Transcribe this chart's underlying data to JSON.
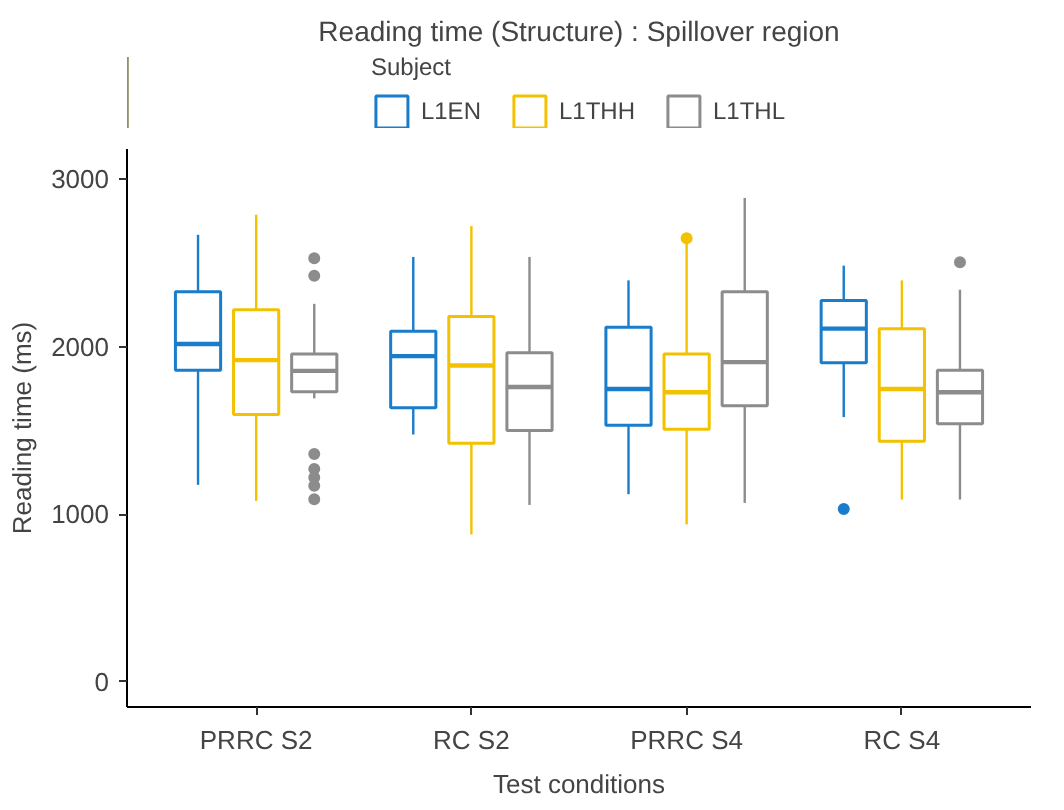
{
  "chart_data": {
    "type": "box",
    "title": "Reading time (Structure) : Spillover region",
    "xlabel": "Test conditions",
    "ylabel": "Reading time (ms)",
    "legend_title": "Subject",
    "categories": [
      "PRRC S2",
      "RC S2",
      "PRRC S4",
      "RC S4"
    ],
    "series": [
      {
        "name": "L1EN",
        "color": "#1a7dcc",
        "boxes": [
          {
            "low": 1176,
            "q1": 1860,
            "median": 2016,
            "q3": 2328,
            "high": 2668
          },
          {
            "low": 1476,
            "q1": 1636,
            "median": 1944,
            "q3": 2092,
            "high": 2536
          },
          {
            "low": 1120,
            "q1": 1532,
            "median": 1748,
            "q3": 2116,
            "high": 2396
          },
          {
            "low": 1580,
            "q1": 1904,
            "median": 2108,
            "q3": 2276,
            "high": 2484,
            "outliers": [
              1032
            ]
          }
        ]
      },
      {
        "name": "L1THH",
        "color": "#f2c200",
        "boxes": [
          {
            "low": 1080,
            "q1": 1596,
            "median": 1920,
            "q3": 2220,
            "high": 2788
          },
          {
            "low": 880,
            "q1": 1424,
            "median": 1888,
            "q3": 2180,
            "high": 2720
          },
          {
            "low": 940,
            "q1": 1508,
            "median": 1728,
            "q3": 1956,
            "high": 2620,
            "outliers": [
              2648
            ]
          },
          {
            "low": 1088,
            "q1": 1436,
            "median": 1748,
            "q3": 2108,
            "high": 2396
          }
        ]
      },
      {
        "name": "L1THL",
        "color": "#8c8c8c",
        "boxes": [
          {
            "low": 1692,
            "q1": 1732,
            "median": 1856,
            "q3": 1956,
            "high": 2256,
            "outliers": [
              2528,
              2424,
              1360,
              1270,
              1220,
              1170,
              1090
            ]
          },
          {
            "low": 1056,
            "q1": 1500,
            "median": 1760,
            "q3": 1964,
            "high": 2536
          },
          {
            "low": 1068,
            "q1": 1648,
            "median": 1908,
            "q3": 2328,
            "high": 2888
          },
          {
            "low": 1088,
            "q1": 1540,
            "median": 1728,
            "q3": 1860,
            "high": 2340,
            "outliers": [
              2504
            ]
          }
        ]
      }
    ],
    "ylim": [
      -150,
      3180
    ],
    "yticks": [
      0,
      1000,
      2000,
      3000
    ],
    "grid": false,
    "legend": "top"
  }
}
